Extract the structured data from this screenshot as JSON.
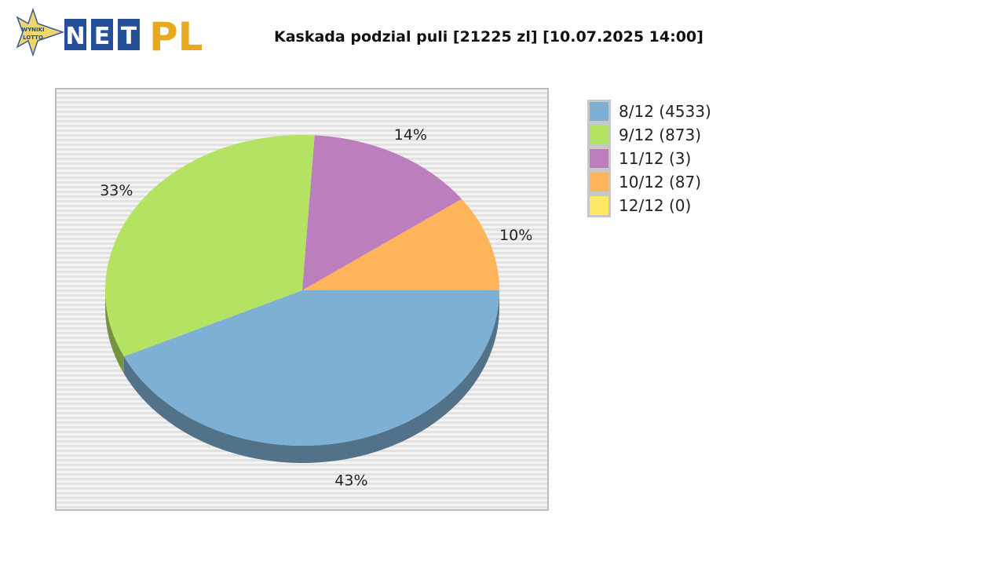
{
  "logo": {
    "text": "NET PL",
    "badge": "WYNIKI LOTTO"
  },
  "chart_data": {
    "type": "pie",
    "title": "Kaskada podzial puli [21225 zl] [10.07.2025 14:00]",
    "style": "3d",
    "legend_position": "right",
    "slices": [
      {
        "label": "8/12 (4533)",
        "percent": 43,
        "percent_label": "43%",
        "color": "#7eafd4"
      },
      {
        "label": "9/12 (873)",
        "percent": 33,
        "percent_label": "33%",
        "color": "#b4e262"
      },
      {
        "label": "11/12 (3)",
        "percent": 14,
        "percent_label": "14%",
        "color": "#bc7ebc"
      },
      {
        "label": "10/12 (87)",
        "percent": 10,
        "percent_label": "10%",
        "color": "#feb45a"
      },
      {
        "label": "12/12 (0)",
        "percent": 0,
        "percent_label": "",
        "color": "#ffe866"
      }
    ]
  }
}
